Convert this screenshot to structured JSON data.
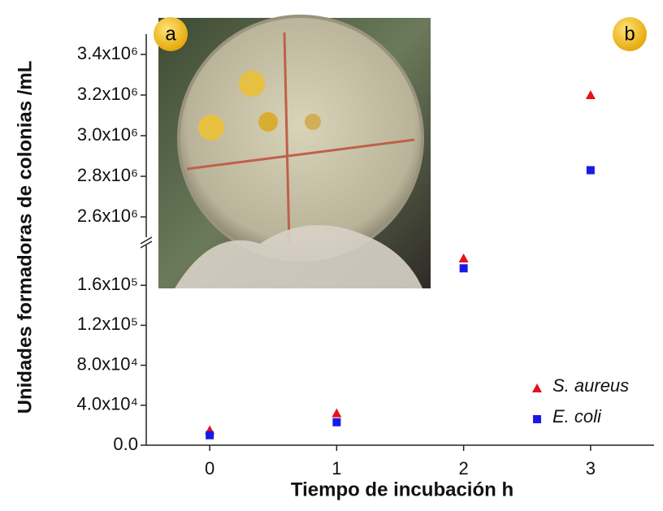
{
  "chart_data": {
    "type": "scatter",
    "xlabel": "Tiempo de incubación h",
    "ylabel": "Unidades formadoras de colonias /mL",
    "x": [
      0,
      1,
      2,
      3
    ],
    "xlim": [
      -0.5,
      3.5
    ],
    "xticks": [
      0,
      1,
      2,
      3
    ],
    "y_segments": [
      {
        "ylim": [
          0,
          200000
        ],
        "yticks": [
          {
            "value": 0,
            "label": "0.0"
          },
          {
            "value": 40000,
            "label": "4.0x10⁴"
          },
          {
            "value": 80000,
            "label": "8.0x10⁴"
          },
          {
            "value": 120000,
            "label": "1.2x10⁵"
          },
          {
            "value": 160000,
            "label": "1.6x10⁵"
          }
        ]
      },
      {
        "ylim": [
          2500000,
          3500000
        ],
        "yticks": [
          {
            "value": 2600000,
            "label": "2.6x10⁶"
          },
          {
            "value": 2800000,
            "label": "2.8x10⁶"
          },
          {
            "value": 3000000,
            "label": "3.0x10⁶"
          },
          {
            "value": 3200000,
            "label": "3.2x10⁶"
          },
          {
            "value": 3400000,
            "label": "3.4x10⁶"
          }
        ]
      }
    ],
    "series": [
      {
        "name": "S. aureus",
        "color": "#e8101a",
        "marker": "triangle",
        "values": [
          15000,
          32000,
          187000,
          3200000
        ]
      },
      {
        "name": "E. coli",
        "color": "#1a1ae6",
        "marker": "square",
        "values": [
          10000,
          23000,
          177000,
          2830000
        ]
      }
    ],
    "legend": "lower right",
    "annotations": [
      "a",
      "b"
    ]
  }
}
